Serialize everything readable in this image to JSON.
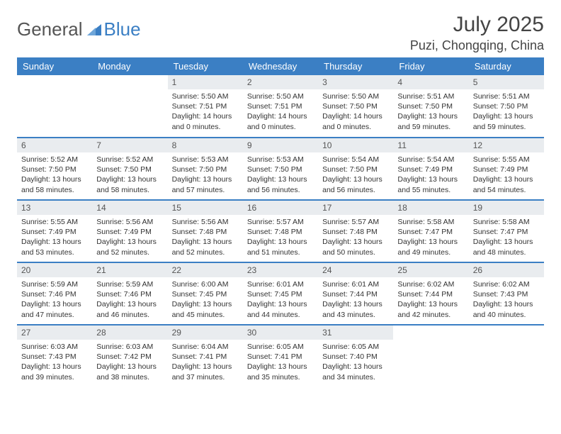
{
  "logo": {
    "word1": "General",
    "word2": "Blue"
  },
  "title": "July 2025",
  "location": "Puzi, Chongqing, China",
  "colors": {
    "header_bg": "#3b7fc4",
    "header_text": "#ffffff",
    "daynum_bg": "#e9ecef",
    "border": "#3b7fc4",
    "text": "#333333",
    "logo_gray": "#555555",
    "logo_blue": "#3b7fc4"
  },
  "day_headers": [
    "Sunday",
    "Monday",
    "Tuesday",
    "Wednesday",
    "Thursday",
    "Friday",
    "Saturday"
  ],
  "weeks": [
    [
      null,
      null,
      {
        "n": "1",
        "sr": "5:50 AM",
        "ss": "7:51 PM",
        "dl": "14 hours and 0 minutes."
      },
      {
        "n": "2",
        "sr": "5:50 AM",
        "ss": "7:51 PM",
        "dl": "14 hours and 0 minutes."
      },
      {
        "n": "3",
        "sr": "5:50 AM",
        "ss": "7:50 PM",
        "dl": "14 hours and 0 minutes."
      },
      {
        "n": "4",
        "sr": "5:51 AM",
        "ss": "7:50 PM",
        "dl": "13 hours and 59 minutes."
      },
      {
        "n": "5",
        "sr": "5:51 AM",
        "ss": "7:50 PM",
        "dl": "13 hours and 59 minutes."
      }
    ],
    [
      {
        "n": "6",
        "sr": "5:52 AM",
        "ss": "7:50 PM",
        "dl": "13 hours and 58 minutes."
      },
      {
        "n": "7",
        "sr": "5:52 AM",
        "ss": "7:50 PM",
        "dl": "13 hours and 58 minutes."
      },
      {
        "n": "8",
        "sr": "5:53 AM",
        "ss": "7:50 PM",
        "dl": "13 hours and 57 minutes."
      },
      {
        "n": "9",
        "sr": "5:53 AM",
        "ss": "7:50 PM",
        "dl": "13 hours and 56 minutes."
      },
      {
        "n": "10",
        "sr": "5:54 AM",
        "ss": "7:50 PM",
        "dl": "13 hours and 56 minutes."
      },
      {
        "n": "11",
        "sr": "5:54 AM",
        "ss": "7:49 PM",
        "dl": "13 hours and 55 minutes."
      },
      {
        "n": "12",
        "sr": "5:55 AM",
        "ss": "7:49 PM",
        "dl": "13 hours and 54 minutes."
      }
    ],
    [
      {
        "n": "13",
        "sr": "5:55 AM",
        "ss": "7:49 PM",
        "dl": "13 hours and 53 minutes."
      },
      {
        "n": "14",
        "sr": "5:56 AM",
        "ss": "7:49 PM",
        "dl": "13 hours and 52 minutes."
      },
      {
        "n": "15",
        "sr": "5:56 AM",
        "ss": "7:48 PM",
        "dl": "13 hours and 52 minutes."
      },
      {
        "n": "16",
        "sr": "5:57 AM",
        "ss": "7:48 PM",
        "dl": "13 hours and 51 minutes."
      },
      {
        "n": "17",
        "sr": "5:57 AM",
        "ss": "7:48 PM",
        "dl": "13 hours and 50 minutes."
      },
      {
        "n": "18",
        "sr": "5:58 AM",
        "ss": "7:47 PM",
        "dl": "13 hours and 49 minutes."
      },
      {
        "n": "19",
        "sr": "5:58 AM",
        "ss": "7:47 PM",
        "dl": "13 hours and 48 minutes."
      }
    ],
    [
      {
        "n": "20",
        "sr": "5:59 AM",
        "ss": "7:46 PM",
        "dl": "13 hours and 47 minutes."
      },
      {
        "n": "21",
        "sr": "5:59 AM",
        "ss": "7:46 PM",
        "dl": "13 hours and 46 minutes."
      },
      {
        "n": "22",
        "sr": "6:00 AM",
        "ss": "7:45 PM",
        "dl": "13 hours and 45 minutes."
      },
      {
        "n": "23",
        "sr": "6:01 AM",
        "ss": "7:45 PM",
        "dl": "13 hours and 44 minutes."
      },
      {
        "n": "24",
        "sr": "6:01 AM",
        "ss": "7:44 PM",
        "dl": "13 hours and 43 minutes."
      },
      {
        "n": "25",
        "sr": "6:02 AM",
        "ss": "7:44 PM",
        "dl": "13 hours and 42 minutes."
      },
      {
        "n": "26",
        "sr": "6:02 AM",
        "ss": "7:43 PM",
        "dl": "13 hours and 40 minutes."
      }
    ],
    [
      {
        "n": "27",
        "sr": "6:03 AM",
        "ss": "7:43 PM",
        "dl": "13 hours and 39 minutes."
      },
      {
        "n": "28",
        "sr": "6:03 AM",
        "ss": "7:42 PM",
        "dl": "13 hours and 38 minutes."
      },
      {
        "n": "29",
        "sr": "6:04 AM",
        "ss": "7:41 PM",
        "dl": "13 hours and 37 minutes."
      },
      {
        "n": "30",
        "sr": "6:05 AM",
        "ss": "7:41 PM",
        "dl": "13 hours and 35 minutes."
      },
      {
        "n": "31",
        "sr": "6:05 AM",
        "ss": "7:40 PM",
        "dl": "13 hours and 34 minutes."
      },
      null,
      null
    ]
  ]
}
